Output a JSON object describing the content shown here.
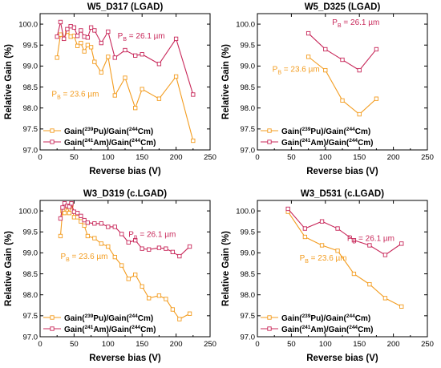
{
  "chart_data": [
    {
      "type": "line",
      "title": "W5_D317 (LGAD)",
      "xlabel": "Reverse bias (V)",
      "ylabel": "Relative Gain (%)",
      "xlim": [
        0,
        250
      ],
      "ylim": [
        97.0,
        100.25
      ],
      "xticks": [
        0,
        50,
        100,
        150,
        200,
        250
      ],
      "yticks": [
        97.0,
        97.5,
        98.0,
        98.5,
        99.0,
        99.5,
        100.0
      ],
      "grid": false,
      "legend": "bottom-left",
      "annotations": [
        {
          "text": "P",
          "sub": "B",
          "rest": " = 26.1 µm",
          "x": 114,
          "y": 99.66,
          "color": "#c8285a"
        },
        {
          "text": "P",
          "sub": "B",
          "rest": " = 23.6 µm",
          "x": 17,
          "y": 98.27,
          "color": "#f39c1f"
        }
      ],
      "series": [
        {
          "name": "Gain(239Pu)/Gain(244Cm)",
          "label_parts": [
            "Gain(",
            "239",
            "Pu)/Gain(",
            "244",
            "Cm)"
          ],
          "color": "#f39c1f",
          "x": [
            25,
            30,
            35,
            40,
            45,
            50,
            55,
            60,
            65,
            70,
            75,
            80,
            90,
            100,
            110,
            125,
            140,
            150,
            175,
            200,
            225
          ],
          "y": [
            99.2,
            99.75,
            99.65,
            99.82,
            99.7,
            99.72,
            99.48,
            99.55,
            99.35,
            99.5,
            99.45,
            99.1,
            98.85,
            99.22,
            98.3,
            98.72,
            98.0,
            98.45,
            98.22,
            98.75,
            97.22
          ]
        },
        {
          "name": "Gain(241Am)/Gain(244Cm)",
          "label_parts": [
            "Gain(",
            "241",
            "Am)/Gain(",
            "244",
            "Cm)"
          ],
          "color": "#c8285a",
          "x": [
            25,
            30,
            35,
            40,
            45,
            50,
            55,
            60,
            65,
            70,
            75,
            80,
            90,
            100,
            110,
            125,
            140,
            150,
            175,
            200,
            225
          ],
          "y": [
            99.7,
            100.05,
            99.65,
            99.88,
            99.95,
            99.92,
            99.72,
            99.85,
            99.7,
            99.68,
            99.92,
            99.85,
            99.55,
            99.82,
            99.2,
            99.38,
            99.25,
            99.28,
            99.05,
            99.65,
            98.32
          ]
        }
      ]
    },
    {
      "type": "line",
      "title": "W5_D325 (LGAD)",
      "xlabel": "Reverse bias (V)",
      "ylabel": "Relative Gain (%)",
      "xlim": [
        0,
        250
      ],
      "ylim": [
        97.0,
        100.25
      ],
      "xticks": [
        0,
        50,
        100,
        150,
        200,
        250
      ],
      "yticks": [
        97.0,
        97.5,
        98.0,
        98.5,
        99.0,
        99.5,
        100.0
      ],
      "grid": false,
      "legend": "bottom-left",
      "annotations": [
        {
          "text": "P",
          "sub": "B",
          "rest": " = 26.1 µm",
          "x": 110,
          "y": 99.98,
          "color": "#c8285a"
        },
        {
          "text": "P",
          "sub": "B",
          "rest": " = 23.6 µm",
          "x": 22,
          "y": 98.86,
          "color": "#f39c1f"
        }
      ],
      "series": [
        {
          "name": "Gain(239Pu)/Gain(244Cm)",
          "label_parts": [
            "Gain(",
            "239",
            "Pu)/Gain(",
            "244",
            "Cm)"
          ],
          "color": "#f39c1f",
          "x": [
            75,
            100,
            125,
            150,
            175
          ],
          "y": [
            99.22,
            98.9,
            98.18,
            97.85,
            98.22
          ]
        },
        {
          "name": "Gain(241Am)/Gain(244Cm)",
          "label_parts": [
            "Gain(",
            "241",
            "Am)/Gain(",
            "244",
            "Cm)"
          ],
          "color": "#c8285a",
          "x": [
            75,
            100,
            125,
            150,
            175
          ],
          "y": [
            99.78,
            99.4,
            99.15,
            98.9,
            99.4
          ]
        }
      ]
    },
    {
      "type": "line",
      "title": "W3_D319 (c.LGAD)",
      "xlabel": "Reverse bias (V)",
      "ylabel": "Relative Gain (%)",
      "xlim": [
        0,
        250
      ],
      "ylim": [
        97.0,
        100.25
      ],
      "xticks": [
        0,
        50,
        100,
        150,
        200,
        250
      ],
      "yticks": [
        97.0,
        97.5,
        98.0,
        98.5,
        99.0,
        99.5,
        100.0
      ],
      "grid": false,
      "legend": "bottom-left",
      "annotations": [
        {
          "text": "P",
          "sub": "B",
          "rest": " = 26.1 µm",
          "x": 130,
          "y": 99.38,
          "color": "#c8285a"
        },
        {
          "text": "P",
          "sub": "B",
          "rest": " = 23.6 µm",
          "x": 30,
          "y": 98.85,
          "color": "#f39c1f"
        }
      ],
      "series": [
        {
          "name": "Gain(239Pu)/Gain(244Cm)",
          "label_parts": [
            "Gain(",
            "239",
            "Pu)/Gain(",
            "244",
            "Cm)"
          ],
          "color": "#f39c1f",
          "x": [
            30,
            33,
            36,
            40,
            43,
            46,
            50,
            55,
            60,
            65,
            70,
            80,
            90,
            100,
            110,
            120,
            130,
            140,
            150,
            160,
            175,
            185,
            195,
            205,
            220
          ],
          "y": [
            99.4,
            100.0,
            99.95,
            100.1,
            99.95,
            100.15,
            99.85,
            99.85,
            99.75,
            99.65,
            99.4,
            99.35,
            99.22,
            99.15,
            98.9,
            98.7,
            98.38,
            98.48,
            98.2,
            97.92,
            97.98,
            97.9,
            97.65,
            97.42,
            97.55
          ]
        },
        {
          "name": "Gain(241Am)/Gain(244Cm)",
          "label_parts": [
            "Gain(",
            "241",
            "Am)/Gain(",
            "244",
            "Cm)"
          ],
          "color": "#c8285a",
          "x": [
            30,
            33,
            36,
            40,
            43,
            46,
            50,
            55,
            60,
            65,
            70,
            80,
            90,
            100,
            110,
            120,
            130,
            140,
            150,
            160,
            175,
            185,
            195,
            205,
            220
          ],
          "y": [
            99.82,
            100.08,
            100.18,
            100.12,
            100.1,
            100.18,
            99.98,
            99.95,
            99.88,
            99.78,
            99.72,
            99.7,
            99.7,
            99.62,
            99.62,
            99.45,
            99.25,
            99.3,
            99.1,
            99.08,
            99.12,
            99.1,
            99.02,
            98.92,
            99.15
          ]
        }
      ]
    },
    {
      "type": "line",
      "title": "W3_D531 (c.LGAD)",
      "xlabel": "Reverse bias (V)",
      "ylabel": "Relative Gain (%)",
      "xlim": [
        0,
        250
      ],
      "ylim": [
        97.0,
        100.25
      ],
      "xticks": [
        0,
        50,
        100,
        150,
        200,
        250
      ],
      "yticks": [
        97.0,
        97.5,
        98.0,
        98.5,
        99.0,
        99.5,
        100.0
      ],
      "grid": false,
      "legend": "bottom-left",
      "annotations": [
        {
          "text": "P",
          "sub": "B",
          "rest": " = 26.1 µm",
          "x": 132,
          "y": 99.28,
          "color": "#c8285a"
        },
        {
          "text": "P",
          "sub": "B",
          "rest": " = 23.6 µm",
          "x": 62,
          "y": 98.82,
          "color": "#f39c1f"
        }
      ],
      "series": [
        {
          "name": "Gain(239Pu)/Gain(244Cm)",
          "label_parts": [
            "Gain(",
            "239",
            "Pu)/Gain(",
            "244",
            "Cm)"
          ],
          "color": "#f39c1f",
          "x": [
            45,
            70,
            95,
            118,
            142,
            165,
            188,
            212
          ],
          "y": [
            99.98,
            99.38,
            99.18,
            99.05,
            98.5,
            98.25,
            97.92,
            97.72
          ]
        },
        {
          "name": "Gain(241Am)/Gain(244Cm)",
          "label_parts": [
            "Gain(",
            "241",
            "Am)/Gain(",
            "244",
            "Cm)"
          ],
          "color": "#c8285a",
          "x": [
            45,
            70,
            95,
            118,
            142,
            165,
            188,
            212
          ],
          "y": [
            100.05,
            99.58,
            99.75,
            99.58,
            99.3,
            99.18,
            98.95,
            99.22
          ]
        }
      ]
    }
  ]
}
